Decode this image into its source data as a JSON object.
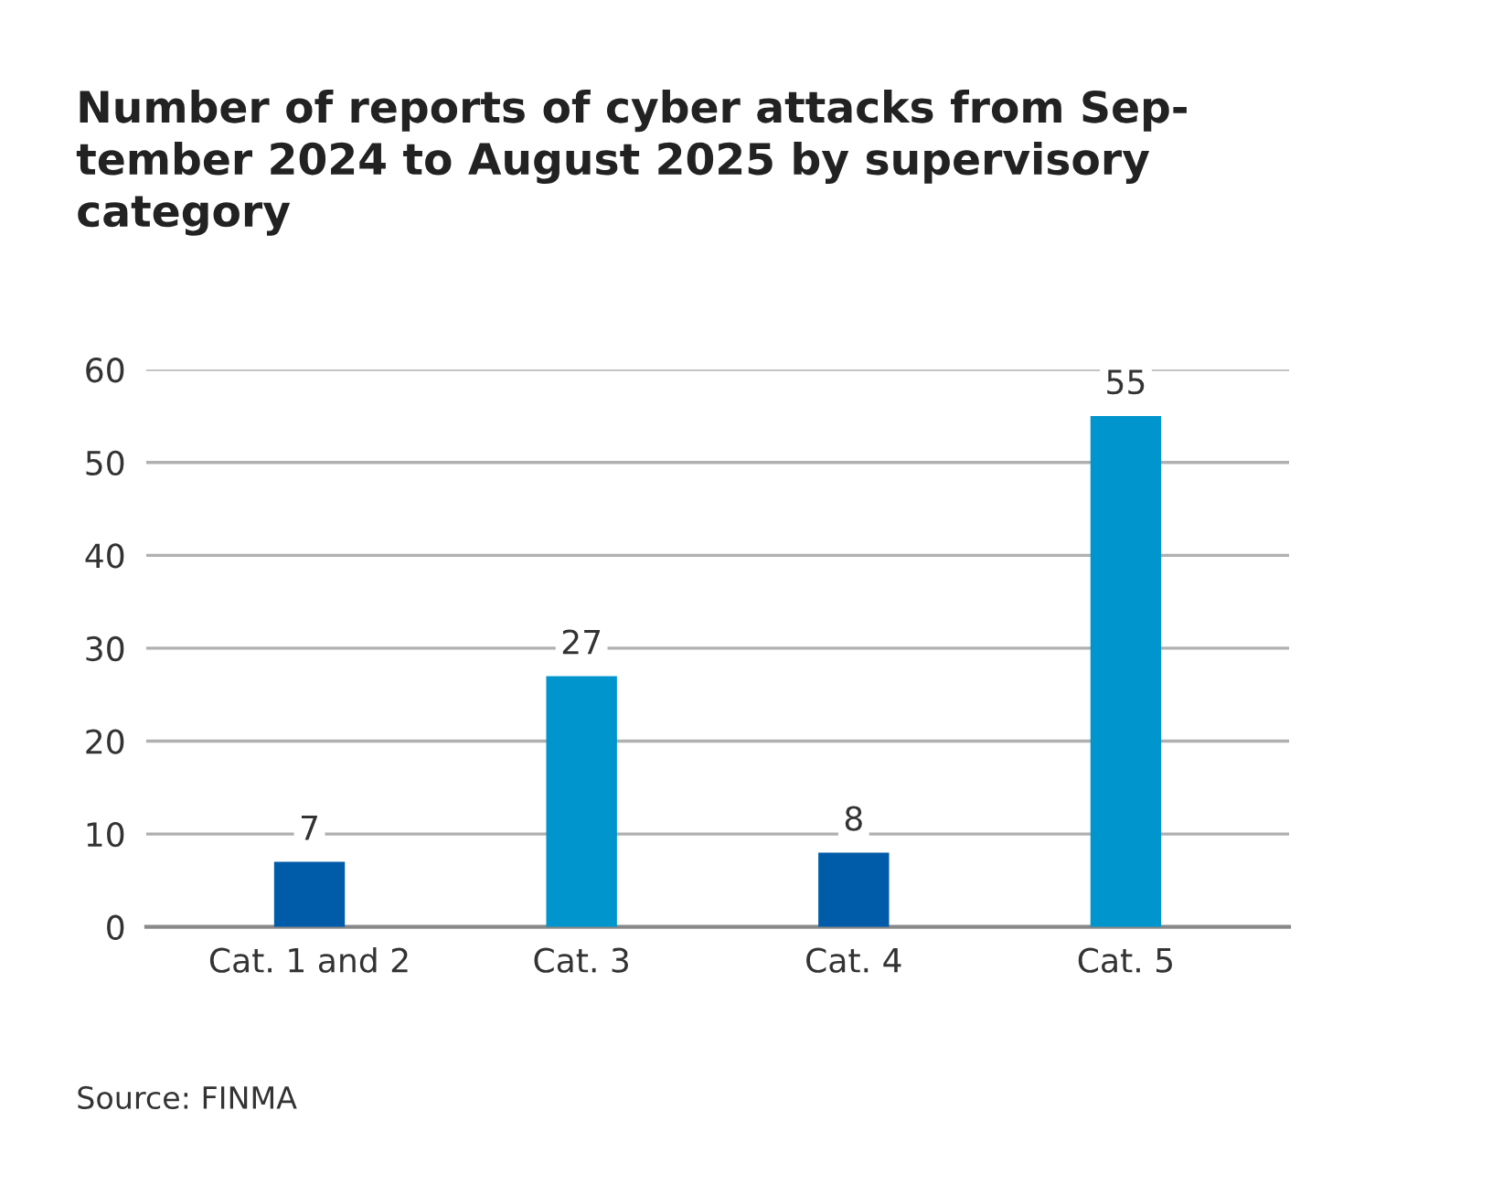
{
  "chart_data": {
    "type": "bar",
    "title": "Number of reports of cyber attacks from Sep-\ntember 2024 to August 2025 by supervisory\ncategory",
    "categories": [
      "Cat. 1 and 2",
      "Cat. 3",
      "Cat. 4",
      "Cat. 5"
    ],
    "values": [
      7,
      27,
      8,
      55
    ],
    "colors": [
      "#005ca9",
      "#0095cc",
      "#005ca9",
      "#0095cc"
    ],
    "ylim": [
      0,
      60
    ],
    "yticks": [
      0,
      10,
      20,
      30,
      40,
      50,
      60
    ],
    "grid": "y",
    "data_labels": true,
    "annotations": [
      "Source: FINMA"
    ]
  }
}
